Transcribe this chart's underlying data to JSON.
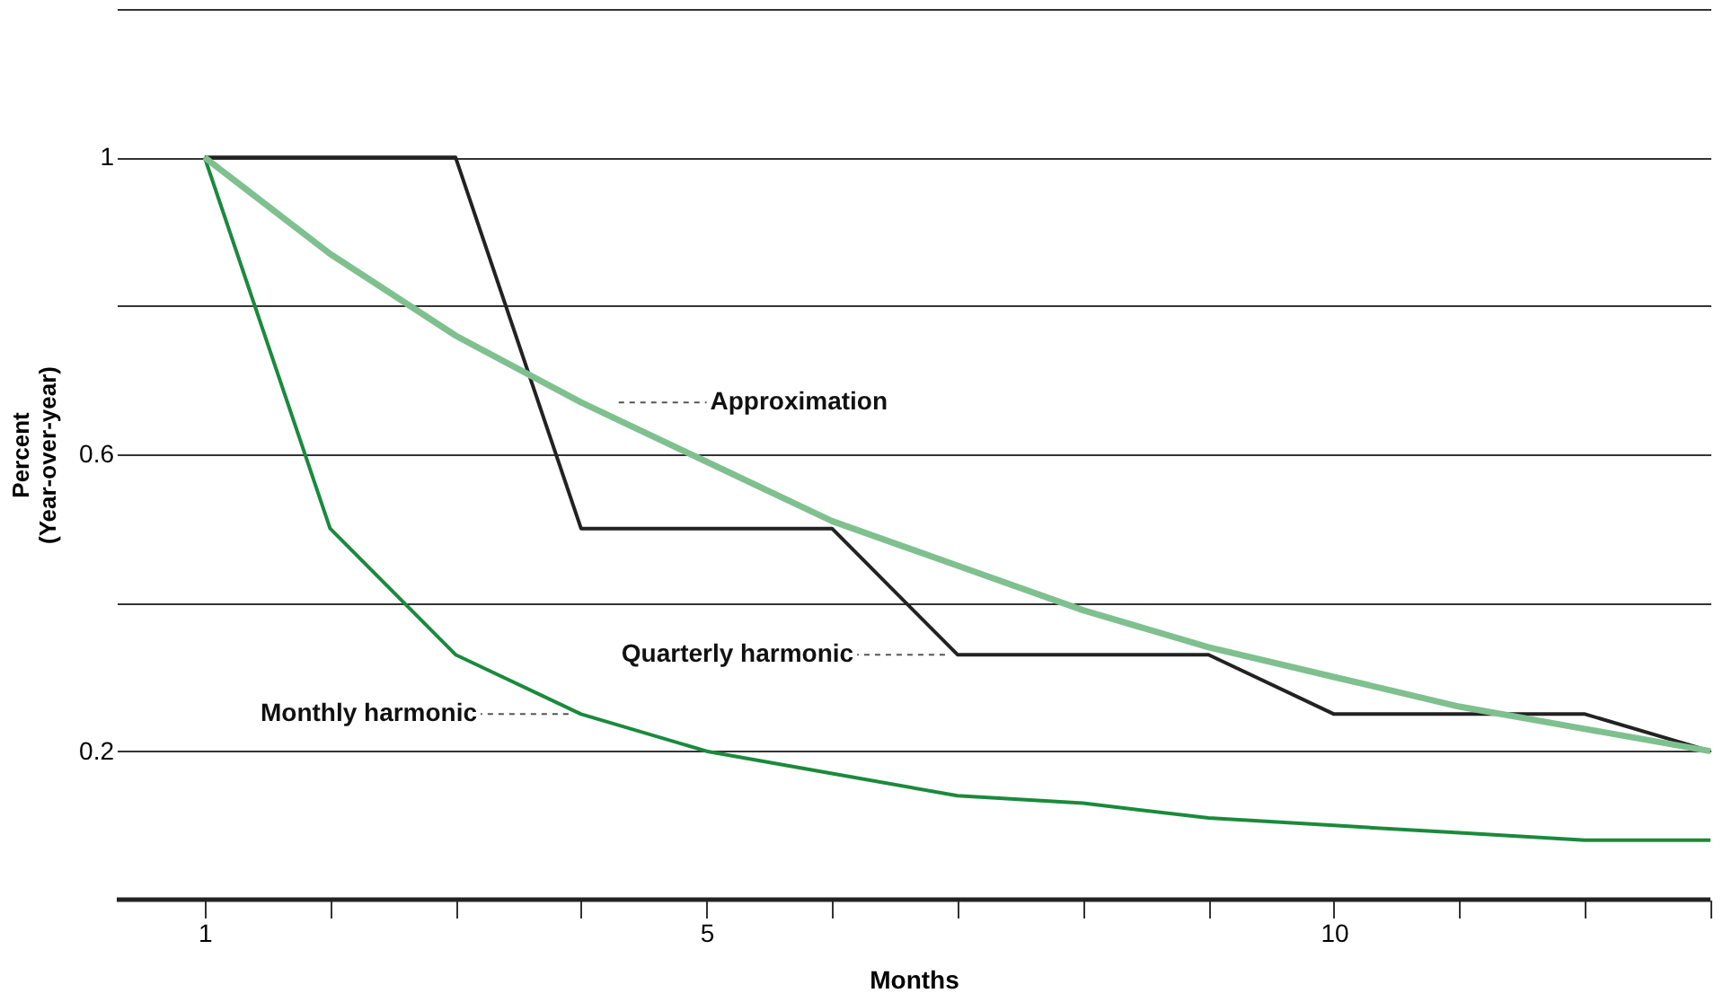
{
  "chart_data": {
    "type": "line",
    "xlabel": "Months",
    "ylabel": "Percent\n(Year-over-year)",
    "x": [
      1,
      2,
      3,
      4,
      5,
      6,
      7,
      8,
      9,
      10,
      11,
      12,
      13
    ],
    "series": [
      {
        "name": "Monthly harmonic",
        "color": "#1a8a3c",
        "values": [
          1,
          0.5,
          0.33,
          0.25,
          0.2,
          0.17,
          0.14,
          0.13,
          0.11,
          0.1,
          0.09,
          0.08,
          0.08
        ]
      },
      {
        "name": "Quarterly harmonic",
        "color": "#222222",
        "type": "step",
        "values": [
          1,
          1,
          1,
          0.5,
          0.5,
          0.5,
          0.33,
          0.33,
          0.33,
          0.25,
          0.25,
          0.25,
          0.2
        ]
      },
      {
        "name": "Approximation",
        "color": "#7fc08f",
        "values": [
          1,
          0.87,
          0.76,
          0.67,
          0.59,
          0.51,
          0.45,
          0.39,
          0.34,
          0.3,
          0.26,
          0.23,
          0.2
        ]
      }
    ],
    "xlim": [
      0.3,
      13
    ],
    "xticks": [
      1,
      {
        "value": 2,
        "label": null
      },
      {
        "value": 3,
        "label": null
      },
      {
        "value": 4,
        "label": null
      },
      5,
      {
        "value": 6,
        "label": null
      },
      {
        "value": 7,
        "label": null
      },
      {
        "value": 8,
        "label": null
      },
      {
        "value": 9,
        "label": null
      },
      10,
      {
        "value": 11,
        "label": null
      },
      {
        "value": 12,
        "label": null
      },
      {
        "value": 13,
        "label": null
      }
    ],
    "ylim": [
      0,
      1.2
    ],
    "yticks": [
      {
        "value": 0.2,
        "label": "0.2"
      },
      {
        "value": 0.4,
        "label": null
      },
      {
        "value": 0.6,
        "label": "0.6"
      },
      {
        "value": 0.8,
        "label": null
      },
      {
        "value": 1,
        "label": "1"
      },
      {
        "value": 1.2,
        "label": null
      }
    ],
    "grid": "y",
    "legend": false
  }
}
